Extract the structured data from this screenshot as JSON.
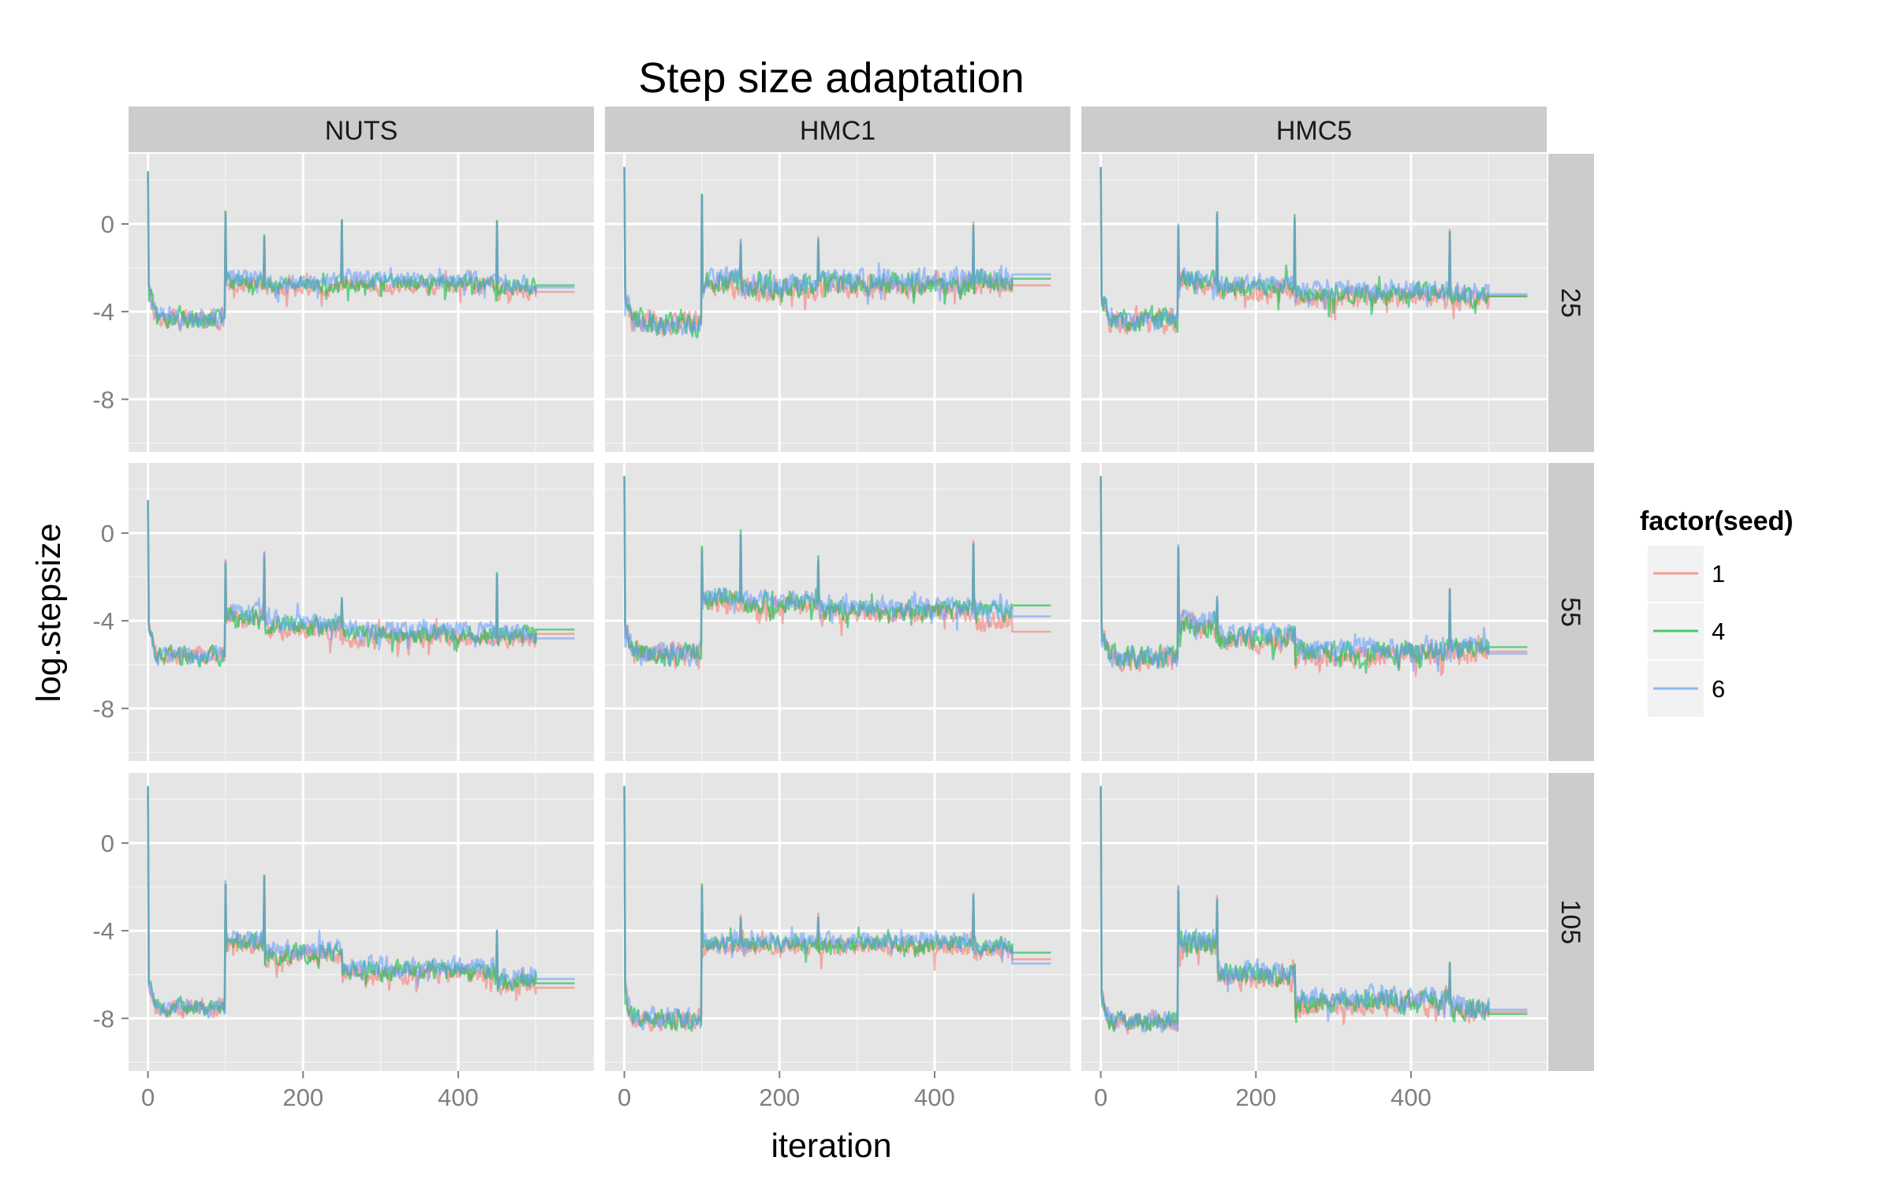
{
  "chart_data": {
    "type": "line",
    "title": "Step size adaptation",
    "xlabel": "iteration",
    "ylabel": "log.stepsize",
    "xlim": [
      -25,
      575
    ],
    "ylim": [
      -10.4,
      3.2
    ],
    "x_ticks": [
      0,
      200,
      400
    ],
    "y_ticks": [
      0,
      -4,
      -8
    ],
    "grid": true,
    "facet_columns": [
      "NUTS",
      "HMC1",
      "HMC5"
    ],
    "facet_rows": [
      "25",
      "55",
      "105"
    ],
    "legend": {
      "title": "factor(seed)",
      "placement": "right",
      "entries": [
        {
          "label": "1",
          "color": "#f8766d"
        },
        {
          "label": "4",
          "color": "#00ba38"
        },
        {
          "label": "6",
          "color": "#619cff"
        }
      ]
    },
    "series_color_order": [
      "#f8766d",
      "#00ba38",
      "#619cff"
    ],
    "iterations": 500,
    "final_segment_end": 550,
    "panels": [
      {
        "sampler": "NUTS",
        "seed_row": "25",
        "init": 2.4,
        "warm": -4.3,
        "warm_noise": 0.7,
        "mid": [
          -2.6,
          -2.8,
          -2.7,
          -2.9
        ],
        "mid_noise": 0.5,
        "final": [
          -3.1,
          -2.8,
          -2.9
        ],
        "spikes": [
          [
            100,
            0.5
          ],
          [
            150,
            -0.5
          ],
          [
            250,
            0.2
          ],
          [
            450,
            0.0
          ]
        ]
      },
      {
        "sampler": "HMC1",
        "seed_row": "25",
        "init": 2.6,
        "warm": -4.5,
        "warm_noise": 0.8,
        "mid": [
          -2.6,
          -2.9,
          -2.7,
          -2.6
        ],
        "mid_noise": 0.7,
        "final": [
          -2.8,
          -2.5,
          -2.3
        ],
        "spikes": [
          [
            100,
            1.2
          ],
          [
            150,
            -0.8
          ],
          [
            250,
            -0.7
          ],
          [
            450,
            0.0
          ]
        ]
      },
      {
        "sampler": "HMC5",
        "seed_row": "25",
        "init": 2.6,
        "warm": -4.4,
        "warm_noise": 0.8,
        "mid": [
          -2.6,
          -2.9,
          -3.2,
          -3.3
        ],
        "mid_noise": 0.6,
        "final": [
          -3.3,
          -3.3,
          -3.2
        ],
        "spikes": [
          [
            100,
            -0.1
          ],
          [
            150,
            0.5
          ],
          [
            250,
            0.3
          ],
          [
            450,
            -0.4
          ]
        ]
      },
      {
        "sampler": "NUTS",
        "seed_row": "55",
        "init": 1.5,
        "warm": -5.6,
        "warm_noise": 0.6,
        "mid": [
          -3.8,
          -4.2,
          -4.6,
          -4.7
        ],
        "mid_noise": 0.6,
        "final": [
          -4.6,
          -4.4,
          -4.8
        ],
        "spikes": [
          [
            100,
            -1.3
          ],
          [
            150,
            -1.0
          ],
          [
            250,
            -3.0
          ],
          [
            450,
            -1.9
          ]
        ]
      },
      {
        "sampler": "HMC1",
        "seed_row": "55",
        "init": 2.6,
        "warm": -5.5,
        "warm_noise": 0.8,
        "mid": [
          -3.0,
          -3.2,
          -3.5,
          -3.6
        ],
        "mid_noise": 0.6,
        "final": [
          -4.5,
          -3.3,
          -3.8
        ],
        "spikes": [
          [
            100,
            -0.7
          ],
          [
            150,
            0.0
          ],
          [
            250,
            -1.2
          ],
          [
            450,
            -0.4
          ]
        ]
      },
      {
        "sampler": "HMC5",
        "seed_row": "55",
        "init": 2.6,
        "warm": -5.7,
        "warm_noise": 0.8,
        "mid": [
          -4.2,
          -4.8,
          -5.4,
          -5.3
        ],
        "mid_noise": 0.7,
        "final": [
          -5.4,
          -5.2,
          -5.5
        ],
        "spikes": [
          [
            100,
            -0.6
          ],
          [
            150,
            -3.0
          ],
          [
            250,
            -4.4
          ],
          [
            450,
            -2.6
          ]
        ]
      },
      {
        "sampler": "NUTS",
        "seed_row": "105",
        "init": 2.6,
        "warm": -7.5,
        "warm_noise": 0.6,
        "mid": [
          -4.5,
          -5.0,
          -5.8,
          -6.2
        ],
        "mid_noise": 0.6,
        "final": [
          -6.6,
          -6.4,
          -6.2
        ],
        "spikes": [
          [
            100,
            -1.8
          ],
          [
            150,
            -1.6
          ],
          [
            250,
            -5.0
          ],
          [
            450,
            -4.0
          ]
        ]
      },
      {
        "sampler": "HMC1",
        "seed_row": "105",
        "init": 2.6,
        "warm": -8.0,
        "warm_noise": 0.7,
        "mid": [
          -4.6,
          -4.6,
          -4.6,
          -4.6
        ],
        "mid_noise": 0.5,
        "final": [
          -5.3,
          -5.0,
          -5.5
        ],
        "spikes": [
          [
            100,
            -2.0
          ],
          [
            150,
            -3.3
          ],
          [
            250,
            -3.3
          ],
          [
            450,
            -2.4
          ]
        ]
      },
      {
        "sampler": "HMC5",
        "seed_row": "105",
        "init": 2.6,
        "warm": -8.1,
        "warm_noise": 0.7,
        "mid": [
          -4.5,
          -6.0,
          -7.2,
          -7.5
        ],
        "mid_noise": 0.7,
        "final": [
          -7.7,
          -7.8,
          -7.6
        ],
        "spikes": [
          [
            100,
            -2.1
          ],
          [
            150,
            -2.5
          ],
          [
            250,
            -5.5
          ],
          [
            450,
            -5.5
          ]
        ]
      }
    ]
  }
}
